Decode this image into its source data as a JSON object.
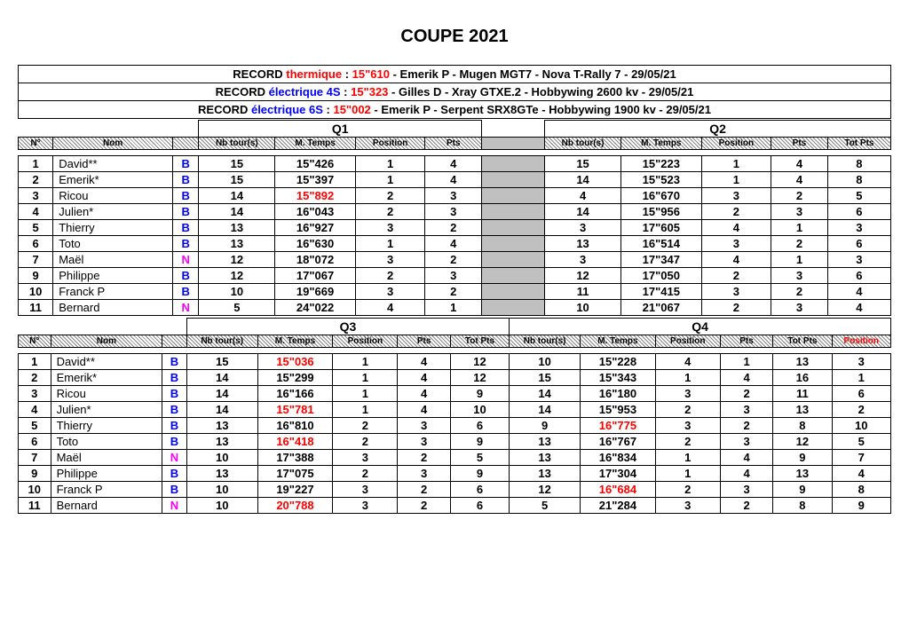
{
  "title": "COUPE 2021",
  "records": [
    {
      "prefix": "RECORD ",
      "type": "thermique",
      "cls": "rec-thermique",
      "sep": " : ",
      "time": "15\"610",
      "rest": " - Emerik P - Mugen MGT7 - Nova T-Rally 7 - 29/05/21"
    },
    {
      "prefix": "RECORD ",
      "type": "électrique 4S",
      "cls": "rec-elec4s",
      "sep": " : ",
      "time": "15\"323",
      "rest": " - Gilles D - Xray GTXE.2 - Hobbywing 2600 kv - 29/05/21"
    },
    {
      "prefix": "RECORD ",
      "type": "électrique 6S",
      "cls": "rec-elec6s",
      "sep": " : ",
      "time": "15\"002",
      "rest": " - Emerik P - Serpent SRX8GTe - Hobbywing 1900 kv - 29/05/21"
    }
  ],
  "hdr": {
    "n": "N°",
    "nom": "Nom",
    "nb": "Nb tour(s)",
    "mt": "M. Temps",
    "pos": "Position",
    "pts": "Pts",
    "tot": "Tot Pts",
    "fpos": "Position",
    "q1": "Q1",
    "q2": "Q2",
    "q3": "Q3",
    "q4": "Q4"
  },
  "drivers": [
    {
      "n": 1,
      "nom": "David**",
      "g": "B"
    },
    {
      "n": 2,
      "nom": "Emerik*",
      "g": "B"
    },
    {
      "n": 3,
      "nom": "Ricou",
      "g": "B"
    },
    {
      "n": 4,
      "nom": "Julien*",
      "g": "B"
    },
    {
      "n": 5,
      "nom": "Thierry",
      "g": "B"
    },
    {
      "n": 6,
      "nom": "Toto",
      "g": "B"
    },
    {
      "n": 7,
      "nom": "Maël",
      "g": "N"
    },
    {
      "n": 9,
      "nom": "Philippe",
      "g": "B"
    },
    {
      "n": 10,
      "nom": "Franck P",
      "g": "B"
    },
    {
      "n": 11,
      "nom": "Bernard",
      "g": "N"
    }
  ],
  "block1": {
    "showTotA": false,
    "showTotB": true,
    "showFinalPos": false,
    "qA": "q1",
    "qB": "q2",
    "rows": [
      {
        "a": {
          "nb": 15,
          "mt": "15\"426",
          "pos": 1,
          "pts": 4
        },
        "b": {
          "nb": 15,
          "mt": "15\"223",
          "pos": 1,
          "pts": 4
        },
        "tot": 8
      },
      {
        "a": {
          "nb": 15,
          "mt": "15\"397",
          "pos": 1,
          "pts": 4
        },
        "b": {
          "nb": 14,
          "mt": "15\"523",
          "pos": 1,
          "pts": 4
        },
        "tot": 8
      },
      {
        "a": {
          "nb": 14,
          "mt": "15\"892",
          "red": true,
          "pos": 2,
          "pts": 3
        },
        "b": {
          "nb": 4,
          "mt": "16\"670",
          "pos": 3,
          "pts": 2
        },
        "tot": 5
      },
      {
        "a": {
          "nb": 14,
          "mt": "16\"043",
          "pos": 2,
          "pts": 3
        },
        "b": {
          "nb": 14,
          "mt": "15\"956",
          "pos": 2,
          "pts": 3
        },
        "tot": 6
      },
      {
        "a": {
          "nb": 13,
          "mt": "16\"927",
          "pos": 3,
          "pts": 2
        },
        "b": {
          "nb": 3,
          "mt": "17\"605",
          "pos": 4,
          "pts": 1
        },
        "tot": 3
      },
      {
        "a": {
          "nb": 13,
          "mt": "16\"630",
          "pos": 1,
          "pts": 4
        },
        "b": {
          "nb": 13,
          "mt": "16\"514",
          "pos": 3,
          "pts": 2
        },
        "tot": 6
      },
      {
        "a": {
          "nb": 12,
          "mt": "18\"072",
          "pos": 3,
          "pts": 2
        },
        "b": {
          "nb": 3,
          "mt": "17\"347",
          "pos": 4,
          "pts": 1
        },
        "tot": 3
      },
      {
        "a": {
          "nb": 12,
          "mt": "17\"067",
          "pos": 2,
          "pts": 3
        },
        "b": {
          "nb": 12,
          "mt": "17\"050",
          "pos": 2,
          "pts": 3
        },
        "tot": 6
      },
      {
        "a": {
          "nb": 10,
          "mt": "19\"669",
          "pos": 3,
          "pts": 2
        },
        "b": {
          "nb": 11,
          "mt": "17\"415",
          "pos": 3,
          "pts": 2
        },
        "tot": 4
      },
      {
        "a": {
          "nb": 5,
          "mt": "24\"022",
          "pos": 4,
          "pts": 1
        },
        "b": {
          "nb": 10,
          "mt": "21\"067",
          "pos": 2,
          "pts": 3
        },
        "tot": 4
      }
    ]
  },
  "block2": {
    "showTotA": true,
    "showTotB": true,
    "showFinalPos": true,
    "qA": "q3",
    "qB": "q4",
    "rows": [
      {
        "a": {
          "nb": 15,
          "mt": "15\"036",
          "red": true,
          "pos": 1,
          "pts": 4
        },
        "tota": 12,
        "b": {
          "nb": 10,
          "mt": "15\"228",
          "pos": 4,
          "pts": 1
        },
        "tot": 13,
        "fpos": 3
      },
      {
        "a": {
          "nb": 14,
          "mt": "15\"299",
          "pos": 1,
          "pts": 4
        },
        "tota": 12,
        "b": {
          "nb": 15,
          "mt": "15\"343",
          "pos": 1,
          "pts": 4
        },
        "tot": 16,
        "fpos": 1
      },
      {
        "a": {
          "nb": 14,
          "mt": "16\"166",
          "pos": 1,
          "pts": 4
        },
        "tota": 9,
        "b": {
          "nb": 14,
          "mt": "16\"180",
          "pos": 3,
          "pts": 2
        },
        "tot": 11,
        "fpos": 6
      },
      {
        "a": {
          "nb": 14,
          "mt": "15\"781",
          "red": true,
          "pos": 1,
          "pts": 4
        },
        "tota": 10,
        "b": {
          "nb": 14,
          "mt": "15\"953",
          "pos": 2,
          "pts": 3
        },
        "tot": 13,
        "fpos": 2
      },
      {
        "a": {
          "nb": 13,
          "mt": "16\"810",
          "pos": 2,
          "pts": 3
        },
        "tota": 6,
        "b": {
          "nb": 9,
          "mt": "16\"775",
          "red": true,
          "pos": 3,
          "pts": 2
        },
        "tot": 8,
        "fpos": 10
      },
      {
        "a": {
          "nb": 13,
          "mt": "16\"418",
          "red": true,
          "pos": 2,
          "pts": 3
        },
        "tota": 9,
        "b": {
          "nb": 13,
          "mt": "16\"767",
          "pos": 2,
          "pts": 3
        },
        "tot": 12,
        "fpos": 5
      },
      {
        "a": {
          "nb": 10,
          "mt": "17\"388",
          "pos": 3,
          "pts": 2
        },
        "tota": 5,
        "b": {
          "nb": 13,
          "mt": "16\"834",
          "pos": 1,
          "pts": 4
        },
        "tot": 9,
        "fpos": 7
      },
      {
        "a": {
          "nb": 13,
          "mt": "17\"075",
          "pos": 2,
          "pts": 3
        },
        "tota": 9,
        "b": {
          "nb": 13,
          "mt": "17\"304",
          "pos": 1,
          "pts": 4
        },
        "tot": 13,
        "fpos": 4
      },
      {
        "a": {
          "nb": 10,
          "mt": "19\"227",
          "pos": 3,
          "pts": 2
        },
        "tota": 6,
        "b": {
          "nb": 12,
          "mt": "16\"684",
          "red": true,
          "pos": 2,
          "pts": 3
        },
        "tot": 9,
        "fpos": 8
      },
      {
        "a": {
          "nb": 10,
          "mt": "20\"788",
          "red": true,
          "pos": 3,
          "pts": 2
        },
        "tota": 6,
        "b": {
          "nb": 5,
          "mt": "21\"284",
          "pos": 3,
          "pts": 2
        },
        "tot": 8,
        "fpos": 9
      }
    ]
  }
}
